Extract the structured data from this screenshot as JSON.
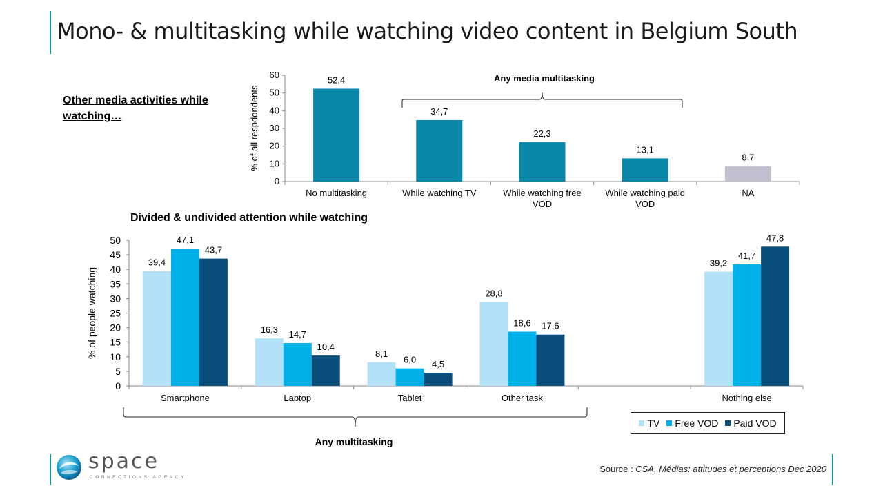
{
  "page": {
    "title": "Mono- & multitasking while watching video content in Belgium South",
    "section1": "Other media activities while watching…",
    "section2": "Divided & undivided attention while watching",
    "source_prefix": "Source : ",
    "source_text": "CSA, Médias: attitudes et perceptions Dec 2020",
    "logo_word": "space",
    "logo_sub": "CONNECTIONS AGENCY"
  },
  "colors": {
    "teal": "#0a86a8",
    "gray": "#c0c0d0",
    "tv": "#b3e1f7",
    "free_vod": "#00b0e8",
    "paid_vod": "#0a4f7c",
    "accent": "#1a8fa3"
  },
  "chart_data": [
    {
      "type": "bar",
      "ylabel": "% of all respdondents",
      "ylim": [
        0,
        60
      ],
      "yticks": [
        0,
        10,
        20,
        30,
        40,
        50,
        60
      ],
      "categories": [
        "No multitasking",
        "While watching TV",
        "While watching free VOD",
        "While watching paid VOD",
        "NA"
      ],
      "values": [
        52.4,
        34.7,
        22.3,
        13.1,
        8.7
      ],
      "value_labels": [
        "52,4",
        "34,7",
        "22,3",
        "13,1",
        "8,7"
      ],
      "bracket_label": "Any media multitasking",
      "legend": "none"
    },
    {
      "type": "bar",
      "ylabel": "% of people watching",
      "ylim": [
        0,
        50
      ],
      "yticks": [
        0,
        5,
        10,
        15,
        20,
        25,
        30,
        35,
        40,
        45,
        50
      ],
      "categories": [
        "Smartphone",
        "Laptop",
        "Tablet",
        "Other task",
        "",
        "Nothing else"
      ],
      "series": [
        {
          "name": "TV",
          "values": [
            39.4,
            16.3,
            8.1,
            28.8,
            null,
            39.2
          ],
          "labels": [
            "39,4",
            "16,3",
            "8,1",
            "28,8",
            "",
            "39,2"
          ]
        },
        {
          "name": "Free VOD",
          "values": [
            47.1,
            14.7,
            6.0,
            18.6,
            null,
            41.7
          ],
          "labels": [
            "47,1",
            "14,7",
            "6,0",
            "18,6",
            "",
            "41,7"
          ]
        },
        {
          "name": "Paid VOD",
          "values": [
            43.7,
            10.4,
            4.5,
            17.6,
            null,
            47.8
          ],
          "labels": [
            "43,7",
            "10,4",
            "4,5",
            "17,6",
            "",
            "47,8"
          ]
        }
      ],
      "bracket_label": "Any multitasking",
      "legend": "bottom-right"
    }
  ]
}
